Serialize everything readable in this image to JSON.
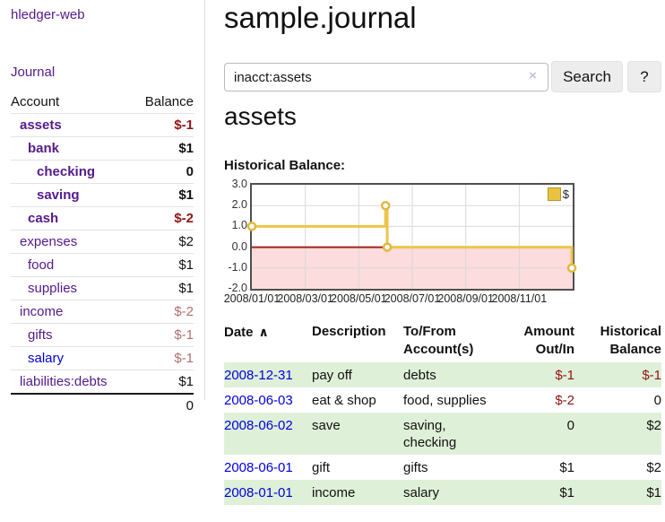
{
  "app": {
    "title": "hledger-web"
  },
  "colors": {
    "link_visited": "#551a8b",
    "link_unvisited": "#0000dd",
    "negative_strong": "#8f1414",
    "negative_muted": "#b36e6e",
    "row_highlight": "#dff0d8",
    "series_gold": "#ecc54b"
  },
  "sidebar": {
    "journal_link": "Journal",
    "accounts_table": {
      "headers": [
        "Account",
        "Balance"
      ],
      "rows": [
        {
          "account": "assets",
          "balance": "$-1",
          "indent": 1,
          "bold": true,
          "amount_tone": "negative-strong",
          "link_tone": "visited"
        },
        {
          "account": "bank",
          "balance": "$1",
          "indent": 2,
          "bold": true,
          "amount_tone": "normal",
          "link_tone": "visited"
        },
        {
          "account": "checking",
          "balance": "0",
          "indent": 3,
          "bold": true,
          "amount_tone": "normal",
          "link_tone": "visited"
        },
        {
          "account": "saving",
          "balance": "$1",
          "indent": 3,
          "bold": true,
          "amount_tone": "normal",
          "link_tone": "visited"
        },
        {
          "account": "cash",
          "balance": "$-2",
          "indent": 2,
          "bold": true,
          "amount_tone": "negative-strong",
          "link_tone": "visited"
        },
        {
          "account": "expenses",
          "balance": "$2",
          "indent": 1,
          "bold": false,
          "amount_tone": "normal",
          "link_tone": "visited"
        },
        {
          "account": "food",
          "balance": "$1",
          "indent": 2,
          "bold": false,
          "amount_tone": "normal",
          "link_tone": "visited"
        },
        {
          "account": "supplies",
          "balance": "$1",
          "indent": 2,
          "bold": false,
          "amount_tone": "normal",
          "link_tone": "visited"
        },
        {
          "account": "income",
          "balance": "$-2",
          "indent": 1,
          "bold": false,
          "amount_tone": "negative-muted",
          "link_tone": "visited"
        },
        {
          "account": "gifts",
          "balance": "$-1",
          "indent": 2,
          "bold": false,
          "amount_tone": "negative-muted",
          "link_tone": "visited"
        },
        {
          "account": "salary",
          "balance": "$-1",
          "indent": 2,
          "bold": false,
          "amount_tone": "negative-muted",
          "link_tone": "unvisited"
        },
        {
          "account": "liabilities:debts",
          "balance": "$1",
          "indent": 1,
          "bold": false,
          "amount_tone": "normal",
          "link_tone": "visited"
        }
      ],
      "total": "0"
    }
  },
  "main": {
    "title": "sample.journal",
    "search": {
      "value": "inacct:assets",
      "clear_icon": "×",
      "button_label": "Search",
      "help_label": "?"
    },
    "account_heading": "assets",
    "chart_label": "Historical Balance:"
  },
  "register": {
    "headers": {
      "date": "Date",
      "sort_icon": "∧",
      "description": "Description",
      "accounts": "To/From Account(s)",
      "amount": "Amount Out/In",
      "balance": "Historical Balance"
    },
    "rows": [
      {
        "date": "2008-12-31",
        "description": "pay off",
        "accounts": "debts",
        "amount": "$-1",
        "amount_tone": "negative",
        "balance": "$-1",
        "balance_tone": "negative",
        "highlight": true
      },
      {
        "date": "2008-06-03",
        "description": "eat & shop",
        "accounts": "food, supplies",
        "amount": "$-2",
        "amount_tone": "negative",
        "balance": "0",
        "balance_tone": "normal",
        "highlight": false
      },
      {
        "date": "2008-06-02",
        "description": "save",
        "accounts": "saving, checking",
        "amount": "0",
        "amount_tone": "normal",
        "balance": "$2",
        "balance_tone": "normal",
        "highlight": true
      },
      {
        "date": "2008-06-01",
        "description": "gift",
        "accounts": "gifts",
        "amount": "$1",
        "amount_tone": "normal",
        "balance": "$2",
        "balance_tone": "normal",
        "highlight": false
      },
      {
        "date": "2008-01-01",
        "description": "income",
        "accounts": "salary",
        "amount": "$1",
        "amount_tone": "normal",
        "balance": "$1",
        "balance_tone": "normal",
        "highlight": true
      }
    ]
  },
  "chart_data": {
    "type": "line",
    "subtype": "step",
    "title": "Historical Balance",
    "legend": [
      "$"
    ],
    "legend_position": "top-right",
    "points": [
      {
        "date": "2008-01-01",
        "value": 1
      },
      {
        "date": "2008-06-01",
        "value": 2
      },
      {
        "date": "2008-06-03",
        "value": 0
      },
      {
        "date": "2008-12-31",
        "value": -1
      }
    ],
    "x_range": [
      "2008-01-01",
      "2009-01-01"
    ],
    "xticks": [
      "2008/01/01",
      "2008/03/01",
      "2008/05/01",
      "2008/07/01",
      "2008/09/01",
      "2008/11/01"
    ],
    "yticks": [
      "3.0",
      "2.0",
      "1.0",
      "0.0",
      "-1.0",
      "-2.0"
    ],
    "ylim": [
      -2,
      3
    ],
    "grid": true,
    "negative_region_color": "#fcdcdc",
    "zero_line_color": "#a51f1f",
    "series_color": "#ecc54b"
  }
}
